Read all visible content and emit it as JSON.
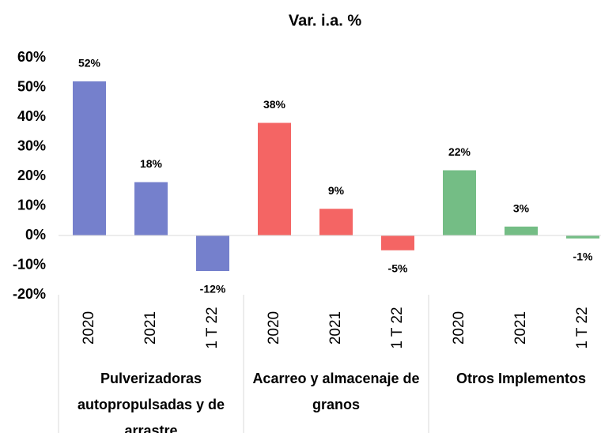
{
  "chart_data": {
    "type": "bar",
    "title": "Var. i.a. %",
    "ylim": [
      -20,
      60
    ],
    "yticks": [
      {
        "value": 60,
        "label": "60%"
      },
      {
        "value": 50,
        "label": "50%"
      },
      {
        "value": 40,
        "label": "40%"
      },
      {
        "value": 30,
        "label": "30%"
      },
      {
        "value": 20,
        "label": "20%"
      },
      {
        "value": 10,
        "label": "10%"
      },
      {
        "value": 0,
        "label": "0%"
      },
      {
        "value": -10,
        "label": "-10%"
      },
      {
        "value": -20,
        "label": "-20%"
      }
    ],
    "grid": false,
    "groups": [
      {
        "name": "Pulverizadoras autopropulsadas y de arrastre",
        "color": "#7580cc",
        "categories": [
          "2020",
          "2021",
          "1 T 22"
        ],
        "values": [
          52,
          18,
          -12
        ],
        "value_labels": [
          "52%",
          "18%",
          "-12%"
        ]
      },
      {
        "name": "Acarreo y almacenaje de granos",
        "color": "#f46564",
        "categories": [
          "2020",
          "2021",
          "1 T 22"
        ],
        "values": [
          38,
          9,
          -5
        ],
        "value_labels": [
          "38%",
          "9%",
          "-5%"
        ]
      },
      {
        "name": "Otros Implementos",
        "color": "#74bd85",
        "categories": [
          "2020",
          "2021",
          "1 T 22"
        ],
        "values": [
          22,
          3,
          -1
        ],
        "value_labels": [
          "22%",
          "3%",
          "-1%"
        ]
      }
    ]
  }
}
